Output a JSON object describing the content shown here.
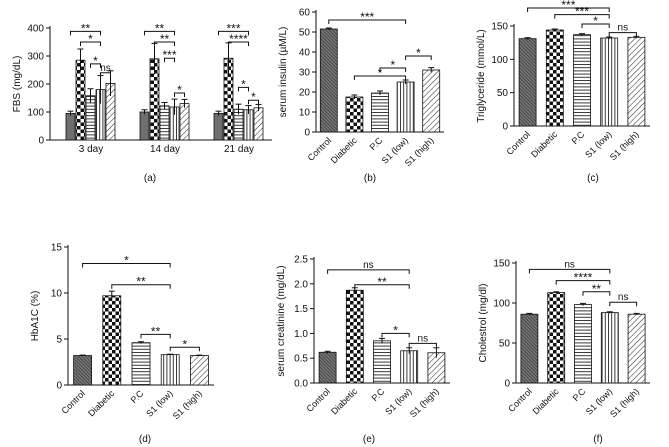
{
  "figure": {
    "panels": [
      {
        "id": "a",
        "label": "(a)"
      },
      {
        "id": "b",
        "label": "(b)"
      },
      {
        "id": "c",
        "label": "(c)"
      },
      {
        "id": "d",
        "label": "(d)"
      },
      {
        "id": "e",
        "label": "(e)"
      },
      {
        "id": "f",
        "label": "(f)"
      }
    ]
  },
  "chart_data": [
    {
      "id": "a",
      "type": "bar",
      "ylabel": "FBS (mg/dL)",
      "xlabel": "",
      "ylim": [
        0,
        400
      ],
      "yticks": [
        "0",
        "100",
        "200",
        "300",
        "400"
      ],
      "categories": [
        "3 day",
        "14 day",
        "21 day"
      ],
      "series": [
        {
          "name": "Control",
          "pattern": "solid",
          "values": [
            95,
            100,
            95
          ],
          "errors": [
            8,
            8,
            8
          ]
        },
        {
          "name": "Diabetic",
          "pattern": "check",
          "values": [
            285,
            290,
            292
          ],
          "errors": [
            40,
            55,
            55
          ]
        },
        {
          "name": "P.C",
          "pattern": "hlines",
          "values": [
            158,
            122,
            110
          ],
          "errors": [
            25,
            12,
            18
          ]
        },
        {
          "name": "S1 (low)",
          "pattern": "vlines",
          "values": [
            180,
            118,
            108
          ],
          "errors": [
            50,
            28,
            15
          ]
        },
        {
          "name": "S1 (high)",
          "pattern": "diag",
          "values": [
            202,
            130,
            115
          ],
          "errors": [
            45,
            15,
            12
          ]
        }
      ],
      "significance": [
        {
          "group": 0,
          "from": 0,
          "to": 3,
          "y": 388,
          "label": "**"
        },
        {
          "group": 0,
          "from": 1,
          "to": 3,
          "y": 350,
          "label": "*"
        },
        {
          "group": 0,
          "from": 2,
          "to": 3,
          "y": 272,
          "label": "*"
        },
        {
          "group": 0,
          "from": 3,
          "to": 4,
          "y": 240,
          "label": "ns"
        },
        {
          "group": 1,
          "from": 0,
          "to": 3,
          "y": 388,
          "label": "**"
        },
        {
          "group": 1,
          "from": 1,
          "to": 3,
          "y": 350,
          "label": "**"
        },
        {
          "group": 1,
          "from": 2,
          "to": 3,
          "y": 292,
          "label": "***"
        },
        {
          "group": 1,
          "from": 3,
          "to": 4,
          "y": 168,
          "label": "*"
        },
        {
          "group": 2,
          "from": 0,
          "to": 3,
          "y": 388,
          "label": "***"
        },
        {
          "group": 2,
          "from": 1,
          "to": 3,
          "y": 350,
          "label": "****"
        },
        {
          "group": 2,
          "from": 2,
          "to": 3,
          "y": 188,
          "label": "*"
        },
        {
          "group": 2,
          "from": 3,
          "to": 4,
          "y": 142,
          "label": "*"
        }
      ]
    },
    {
      "id": "b",
      "type": "bar",
      "ylabel": "serum insulin (µM/L)",
      "ylim": [
        0,
        60
      ],
      "yticks": [
        "0",
        "10",
        "20",
        "30",
        "40",
        "50",
        "60"
      ],
      "categories": [
        "Control",
        "Diabetic",
        "P.C",
        "S1 (low)",
        "S1 (high)"
      ],
      "patterns": [
        "diag-dense",
        "check",
        "hlines",
        "vlines",
        "diag"
      ],
      "values": [
        51.5,
        17.5,
        19.5,
        25,
        31
      ],
      "errors": [
        0.5,
        1,
        1,
        1,
        1.2
      ],
      "significance": [
        {
          "from": 0,
          "to": 3,
          "y": 56,
          "label": "***"
        },
        {
          "from": 1,
          "to": 3,
          "y": 28,
          "label": "*"
        },
        {
          "from": 2,
          "to": 3,
          "y": 32,
          "label": "*"
        },
        {
          "from": 3,
          "to": 4,
          "y": 38,
          "label": "*"
        }
      ]
    },
    {
      "id": "c",
      "type": "bar",
      "ylabel": "Triglyceride (mmol/L)",
      "ylim": [
        0,
        150
      ],
      "yticks": [
        "0",
        "50",
        "100",
        "150"
      ],
      "categories": [
        "Control",
        "Diabetic",
        "P.C",
        "S1 (low)",
        "S1 (high)"
      ],
      "patterns": [
        "diag-dense",
        "check",
        "hlines",
        "vlines",
        "diag"
      ],
      "values": [
        131,
        144,
        137,
        132,
        133
      ],
      "errors": [
        1.5,
        1.5,
        1.5,
        1.5,
        1.5
      ],
      "significance": [
        {
          "from": 0,
          "to": 3,
          "y": 177,
          "label": "***"
        },
        {
          "from": 1,
          "to": 3,
          "y": 167,
          "label": "***"
        },
        {
          "from": 2,
          "to": 3,
          "y": 153,
          "label": "*"
        },
        {
          "from": 3,
          "to": 4,
          "y": 140,
          "label": "ns"
        }
      ]
    },
    {
      "id": "d",
      "type": "bar",
      "ylabel": "HbA1C (%)",
      "ylim": [
        0,
        15
      ],
      "yticks": [
        "0",
        "5",
        "10",
        "15"
      ],
      "categories": [
        "Control",
        "Diabetic",
        "P.C",
        "S1 (low)",
        "S1 (high)"
      ],
      "patterns": [
        "diag-dense",
        "check",
        "hlines",
        "vlines",
        "diag"
      ],
      "values": [
        3.2,
        9.7,
        4.6,
        3.3,
        3.2
      ],
      "errors": [
        0.05,
        0.5,
        0.1,
        0.05,
        0.05
      ],
      "significance": [
        {
          "from": 0,
          "to": 3,
          "y": 13.2,
          "label": "*"
        },
        {
          "from": 1,
          "to": 3,
          "y": 10.9,
          "label": "**"
        },
        {
          "from": 2,
          "to": 3,
          "y": 5.5,
          "label": "**"
        },
        {
          "from": 3,
          "to": 4,
          "y": 4.1,
          "label": "*"
        }
      ]
    },
    {
      "id": "e",
      "type": "bar",
      "ylabel": "serum creatinine (mg/dL)",
      "ylim": [
        0,
        2.5
      ],
      "yticks": [
        "0.0",
        "0.5",
        "1.0",
        "1.5",
        "2.0",
        "2.5"
      ],
      "categories": [
        "Control",
        "Diabetic",
        "P.C",
        "S1 (low)",
        "S1 (high)"
      ],
      "patterns": [
        "diag-dense",
        "check",
        "hlines",
        "vlines",
        "diag"
      ],
      "values": [
        0.62,
        1.87,
        0.85,
        0.65,
        0.61
      ],
      "errors": [
        0.02,
        0.05,
        0.05,
        0.06,
        0.1
      ],
      "significance": [
        {
          "from": 0,
          "to": 3,
          "y": 2.28,
          "label": "ns"
        },
        {
          "from": 1,
          "to": 3,
          "y": 1.98,
          "label": "**"
        },
        {
          "from": 2,
          "to": 3,
          "y": 1.0,
          "label": "*"
        },
        {
          "from": 3,
          "to": 4,
          "y": 0.8,
          "label": "ns"
        }
      ]
    },
    {
      "id": "f",
      "type": "bar",
      "ylabel": "Cholestrol (mg/dl)",
      "ylim": [
        0,
        150
      ],
      "yticks": [
        "0",
        "50",
        "100",
        "150"
      ],
      "categories": [
        "Control",
        "Diabetic",
        "P.C",
        "S1 (low)",
        "S1 (high)"
      ],
      "patterns": [
        "diag-dense",
        "check",
        "hlines",
        "vlines",
        "diag"
      ],
      "values": [
        86,
        113,
        98,
        88,
        86
      ],
      "errors": [
        1,
        1,
        1.5,
        1,
        1
      ],
      "significance": [
        {
          "from": 0,
          "to": 3,
          "y": 142,
          "label": "ns"
        },
        {
          "from": 1,
          "to": 3,
          "y": 128,
          "label": "****"
        },
        {
          "from": 2,
          "to": 3,
          "y": 114,
          "label": "**"
        },
        {
          "from": 3,
          "to": 4,
          "y": 101,
          "label": "ns"
        }
      ]
    }
  ]
}
